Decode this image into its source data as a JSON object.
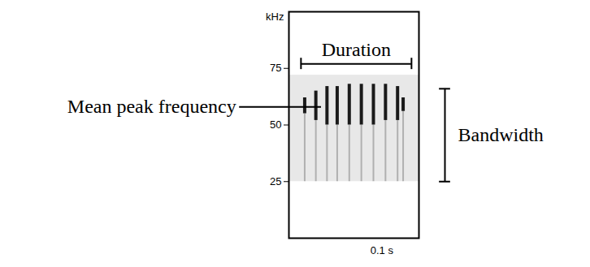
{
  "chart_data": {
    "type": "spectrogram",
    "y_label": "kHz",
    "xlim": [
      0,
      0.14
    ],
    "xticks": [
      {
        "value": 0.1,
        "label": "0.1 s"
      }
    ],
    "ylim": [
      0,
      100
    ],
    "yticks": [
      25,
      50,
      75
    ],
    "color": "#1a1a1a",
    "band": {
      "low": 25,
      "high": 72,
      "color": "#e8e8e8"
    },
    "syllables": [
      {
        "time": 0.017,
        "low": 55,
        "high": 62
      },
      {
        "time": 0.029,
        "low": 52,
        "high": 65
      },
      {
        "time": 0.041,
        "low": 50,
        "high": 67
      },
      {
        "time": 0.052,
        "low": 50,
        "high": 67
      },
      {
        "time": 0.065,
        "low": 50,
        "high": 68
      },
      {
        "time": 0.078,
        "low": 50,
        "high": 68
      },
      {
        "time": 0.091,
        "low": 50,
        "high": 68
      },
      {
        "time": 0.104,
        "low": 52,
        "high": 68
      },
      {
        "time": 0.117,
        "low": 52,
        "high": 67
      },
      {
        "time": 0.123,
        "low": 56,
        "high": 62
      }
    ],
    "annotations": {
      "duration": {
        "label": "Duration",
        "start": 0.013,
        "end": 0.132
      },
      "mean_peak_frequency": {
        "label": "Mean peak frequency",
        "value": 58
      },
      "bandwidth": {
        "label": "Bandwidth",
        "low": 25,
        "high": 66
      }
    }
  }
}
